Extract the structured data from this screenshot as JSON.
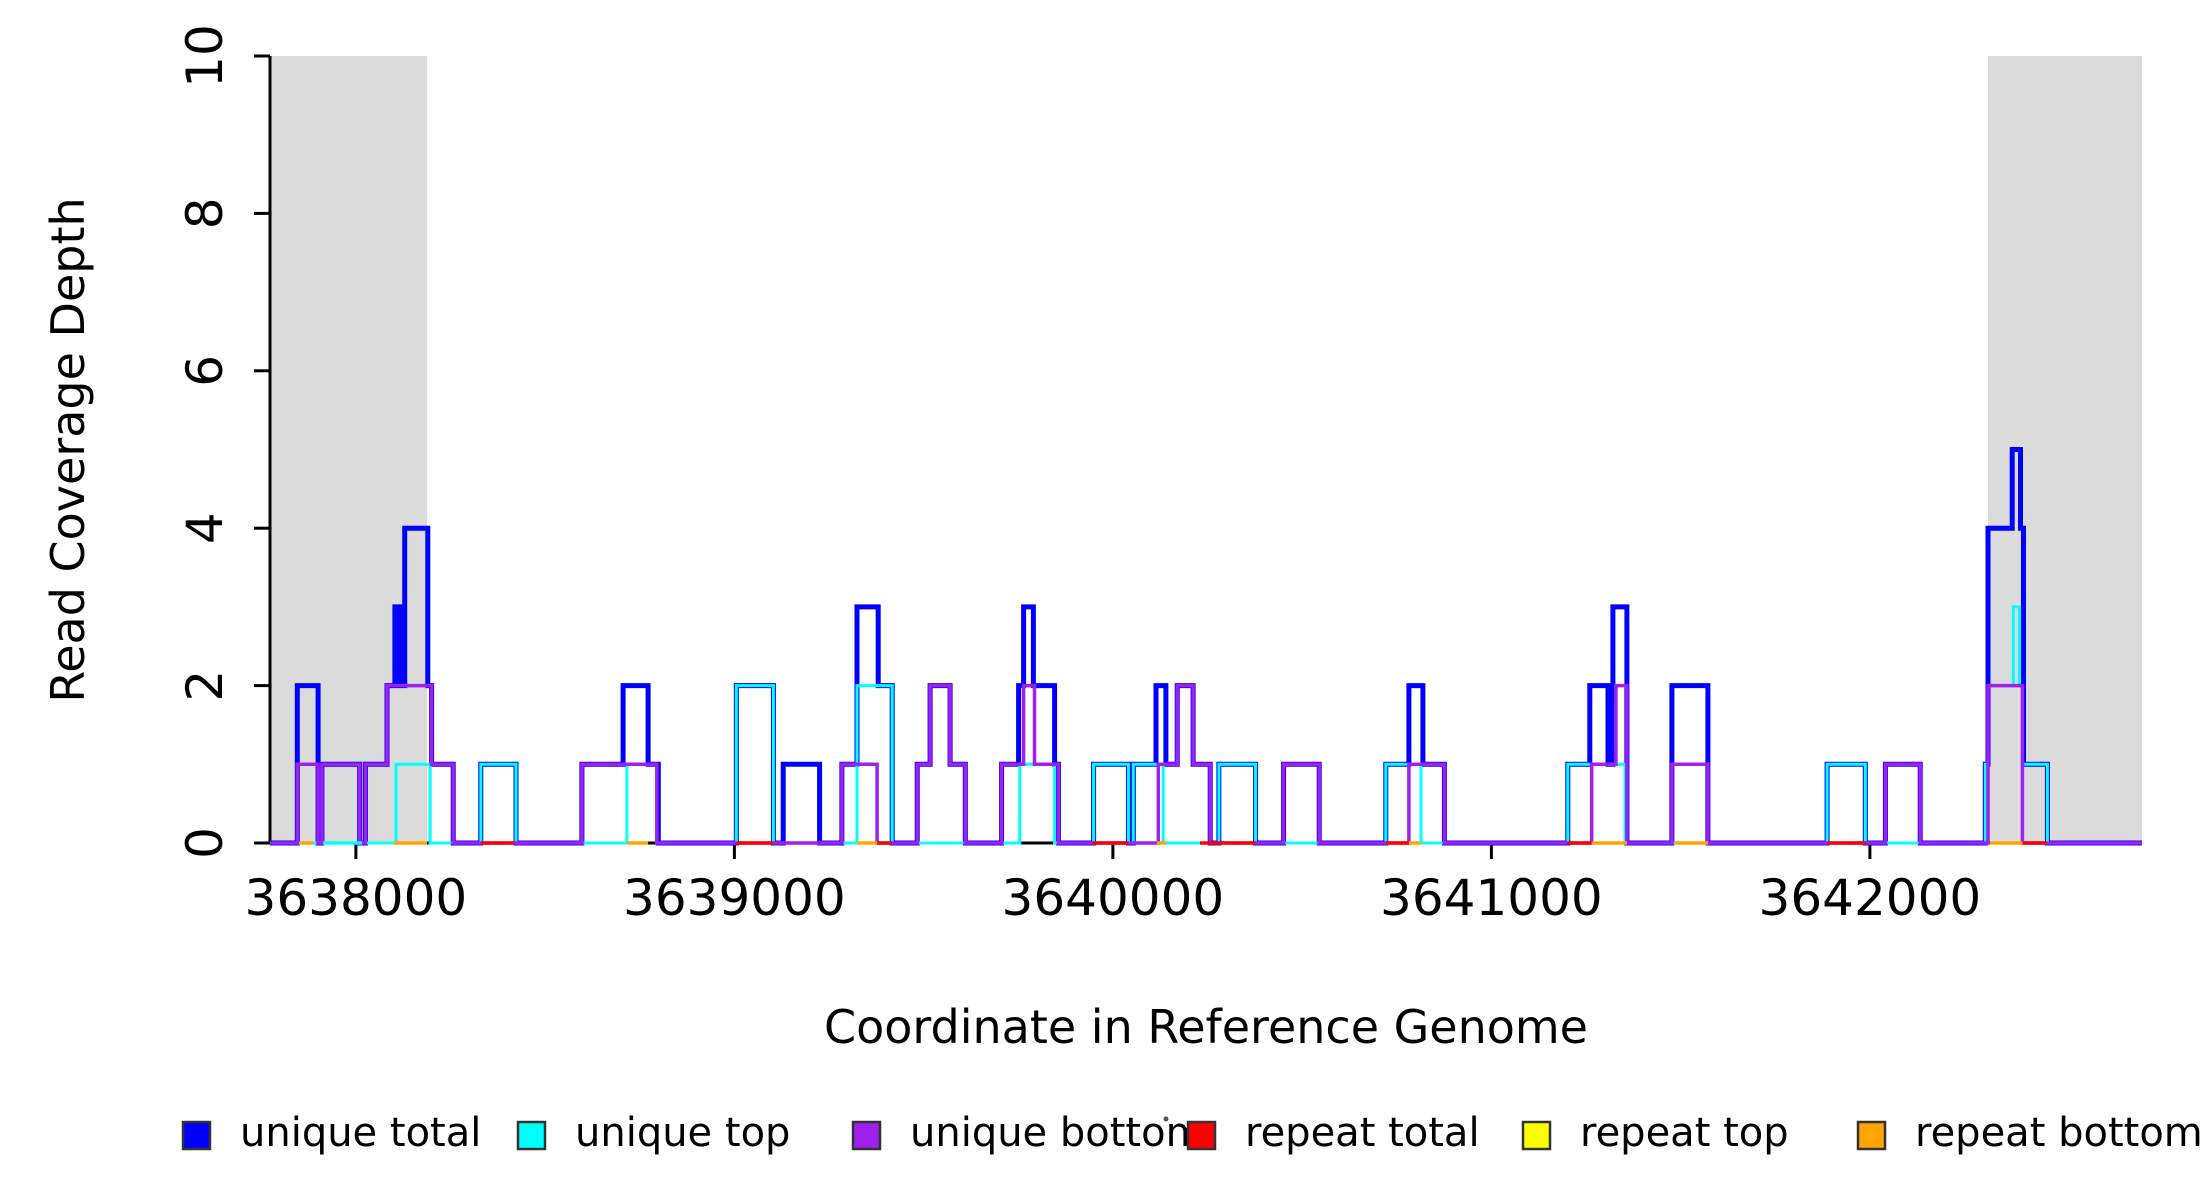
{
  "chart": {
    "xlabel": "Coordinate in Reference Genome",
    "ylabel": "Read Coverage Depth"
  },
  "legend": {
    "items": [
      {
        "label": "unique total",
        "color": "#0000FF"
      },
      {
        "label": "unique top",
        "color": "#00FFFF"
      },
      {
        "label": "unique bottom",
        "color": "#A020F0"
      },
      {
        "label": "repeat total",
        "color": "#FF0000"
      },
      {
        "label": "repeat top",
        "color": "#FFFF00"
      },
      {
        "label": "repeat bottom",
        "color": "#FFA500"
      }
    ]
  },
  "chart_data": {
    "type": "line",
    "subtype": "step-coverage",
    "title": "",
    "xlabel": "Coordinate in Reference Genome",
    "ylabel": "Read Coverage Depth",
    "xlim": [
      3637773,
      3642719
    ],
    "ylim": [
      0,
      10
    ],
    "x_ticks": [
      3638000,
      3639000,
      3640000,
      3641000,
      3642000
    ],
    "y_ticks": [
      0,
      2,
      4,
      6,
      8,
      10
    ],
    "grid": false,
    "legend_position": "bottom",
    "shaded_regions": [
      {
        "start": 3637773,
        "end": 3638188,
        "color": "#DBDBDB"
      },
      {
        "start": 3642312,
        "end": 3642719,
        "color": "#DBDBDB"
      }
    ],
    "series": [
      {
        "name": "unique total",
        "color": "#0000FF",
        "line_width": 5,
        "runs": [
          [
            3637845,
            3637900,
            2
          ],
          [
            3637910,
            3638010,
            1
          ],
          [
            3638025,
            3638082,
            1
          ],
          [
            3638082,
            3638103,
            2
          ],
          [
            3638103,
            3638116,
            3
          ],
          [
            3638116,
            3638129,
            2
          ],
          [
            3638129,
            3638190,
            4
          ],
          [
            3638190,
            3638200,
            2
          ],
          [
            3638200,
            3638257,
            1
          ],
          [
            3638330,
            3638423,
            1
          ],
          [
            3638597,
            3638706,
            1
          ],
          [
            3638706,
            3638772,
            2
          ],
          [
            3638772,
            3638799,
            1
          ],
          [
            3639005,
            3639103,
            2
          ],
          [
            3639129,
            3639225,
            1
          ],
          [
            3639284,
            3639324,
            1
          ],
          [
            3639324,
            3639380,
            3
          ],
          [
            3639380,
            3639417,
            2
          ],
          [
            3639483,
            3639517,
            1
          ],
          [
            3639517,
            3639570,
            2
          ],
          [
            3639570,
            3639610,
            1
          ],
          [
            3639706,
            3639751,
            1
          ],
          [
            3639751,
            3639764,
            2
          ],
          [
            3639764,
            3639790,
            3
          ],
          [
            3639790,
            3639846,
            2
          ],
          [
            3639846,
            3639856,
            1
          ],
          [
            3639949,
            3640041,
            1
          ],
          [
            3640054,
            3640114,
            1
          ],
          [
            3640114,
            3640140,
            2
          ],
          [
            3640140,
            3640170,
            1
          ],
          [
            3640170,
            3640212,
            2
          ],
          [
            3640212,
            3640257,
            1
          ],
          [
            3640280,
            3640377,
            1
          ],
          [
            3640451,
            3640545,
            1
          ],
          [
            3640721,
            3640782,
            1
          ],
          [
            3640782,
            3640819,
            2
          ],
          [
            3640819,
            3640876,
            1
          ],
          [
            3641202,
            3641260,
            1
          ],
          [
            3641260,
            3641308,
            2
          ],
          [
            3641308,
            3641321,
            1
          ],
          [
            3641321,
            3641358,
            3
          ],
          [
            3641477,
            3641572,
            2
          ],
          [
            3641887,
            3641988,
            1
          ],
          [
            3642041,
            3642133,
            1
          ],
          [
            3642305,
            3642312,
            1
          ],
          [
            3642312,
            3642376,
            4
          ],
          [
            3642376,
            3642398,
            5
          ],
          [
            3642398,
            3642406,
            4
          ],
          [
            3642406,
            3642469,
            1
          ]
        ],
        "baseline_segments": []
      },
      {
        "name": "unique top",
        "color": "#00FFFF",
        "line_width": 3,
        "runs": [
          [
            3638106,
            3638196,
            1
          ],
          [
            3638330,
            3638423,
            1
          ],
          [
            3638716,
            3638795,
            1
          ],
          [
            3639005,
            3639103,
            2
          ],
          [
            3639324,
            3639417,
            2
          ],
          [
            3639754,
            3639846,
            1
          ],
          [
            3639949,
            3640041,
            1
          ],
          [
            3640054,
            3640133,
            1
          ],
          [
            3640280,
            3640377,
            1
          ],
          [
            3640721,
            3640814,
            1
          ],
          [
            3641202,
            3641353,
            1
          ],
          [
            3641887,
            3641988,
            1
          ],
          [
            3642305,
            3642312,
            1
          ],
          [
            3642312,
            3642379,
            2
          ],
          [
            3642379,
            3642395,
            3
          ],
          [
            3642395,
            3642403,
            2
          ],
          [
            3642403,
            3642469,
            1
          ]
        ],
        "baseline_segments": [
          [
            3637913,
            3638016
          ]
        ]
      },
      {
        "name": "unique bottom",
        "color": "#A020F0",
        "line_width": 3.5,
        "runs": [
          [
            3637845,
            3637900,
            1
          ],
          [
            3637910,
            3638010,
            1
          ],
          [
            3638025,
            3638082,
            1
          ],
          [
            3638082,
            3638200,
            2
          ],
          [
            3638200,
            3638257,
            1
          ],
          [
            3638597,
            3638795,
            1
          ],
          [
            3639284,
            3639377,
            1
          ],
          [
            3639483,
            3639517,
            1
          ],
          [
            3639517,
            3639570,
            2
          ],
          [
            3639570,
            3639610,
            1
          ],
          [
            3639706,
            3639764,
            1
          ],
          [
            3639764,
            3639793,
            2
          ],
          [
            3639793,
            3639856,
            1
          ],
          [
            3640120,
            3640170,
            1
          ],
          [
            3640170,
            3640212,
            2
          ],
          [
            3640212,
            3640257,
            1
          ],
          [
            3640451,
            3640545,
            1
          ],
          [
            3640782,
            3640876,
            1
          ],
          [
            3641265,
            3641329,
            1
          ],
          [
            3641329,
            3641358,
            2
          ],
          [
            3641477,
            3641572,
            1
          ],
          [
            3642041,
            3642133,
            1
          ],
          [
            3642312,
            3642403,
            2
          ]
        ],
        "baseline_segments": []
      },
      {
        "name": "repeat total",
        "color": "#FF0000",
        "line_width": 3.5,
        "runs": [],
        "baseline_segments": [
          [
            3638331,
            3638420
          ],
          [
            3639005,
            3639103
          ],
          [
            3639376,
            3639416
          ],
          [
            3639945,
            3640040
          ],
          [
            3640230,
            3640377
          ],
          [
            3640721,
            3640782
          ],
          [
            3641200,
            3641265
          ],
          [
            3641887,
            3641990
          ],
          [
            3642404,
            3642467
          ]
        ]
      },
      {
        "name": "repeat top",
        "color": "#FFFF00",
        "line_width": 3.5,
        "runs": [],
        "baseline_segments": []
      },
      {
        "name": "repeat bottom",
        "color": "#FFA500",
        "line_width": 3.5,
        "runs": [],
        "baseline_segments": [
          [
            3637852,
            3637886
          ],
          [
            3638100,
            3638188
          ],
          [
            3638716,
            3638772
          ],
          [
            3639324,
            3639377
          ],
          [
            3640116,
            3640140
          ],
          [
            3640782,
            3640814
          ],
          [
            3641265,
            3641358
          ],
          [
            3641485,
            3641572
          ],
          [
            3642317,
            3642403
          ]
        ]
      }
    ]
  }
}
